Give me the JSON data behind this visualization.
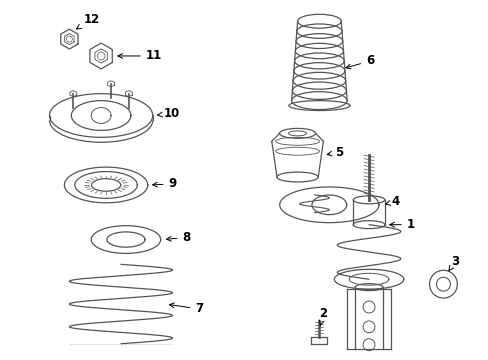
{
  "background_color": "#ffffff",
  "line_color": "#555555",
  "label_color": "#000000",
  "figsize": [
    4.89,
    3.6
  ],
  "dpi": 100
}
